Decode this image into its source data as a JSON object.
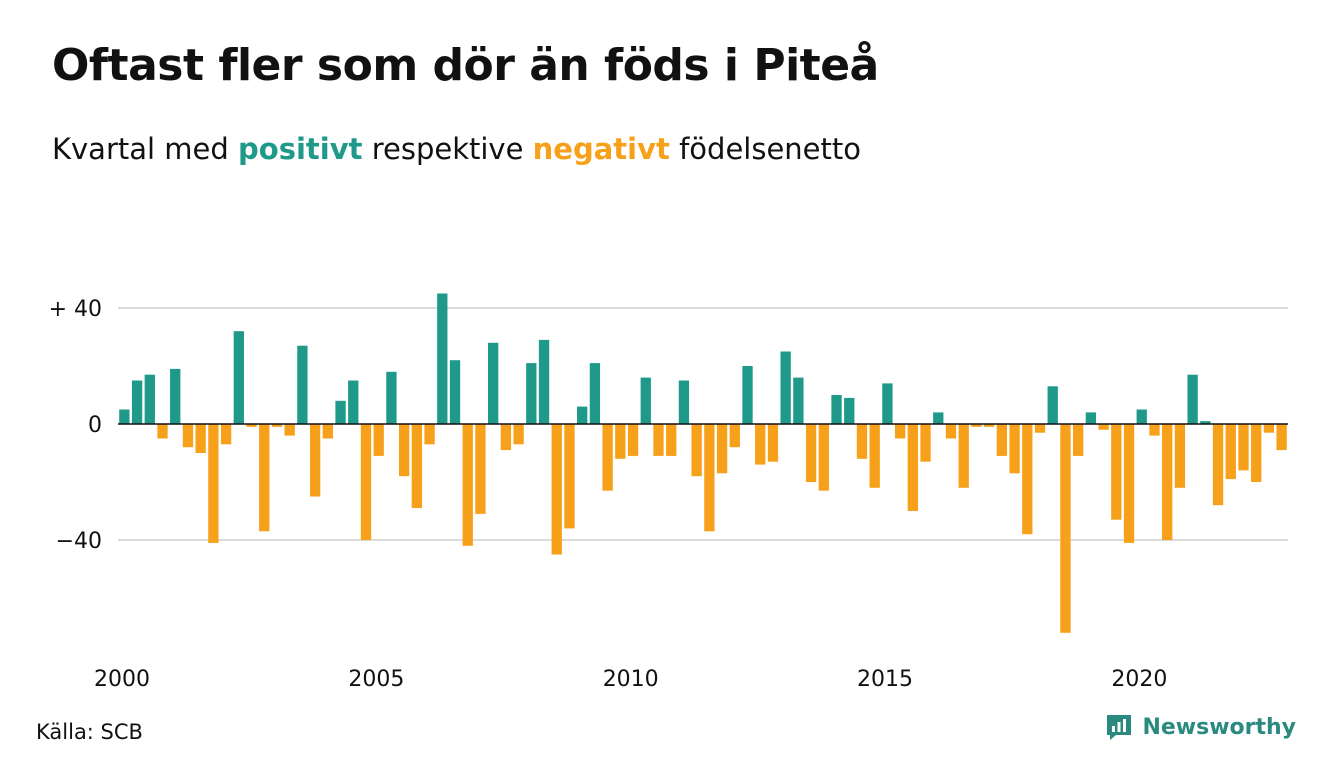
{
  "title": "Oftast fler som dör än föds i Piteå",
  "subtitle": {
    "prefix": "Kvartal med",
    "positive": "positivt",
    "middle": "respektive",
    "negative": "negativt",
    "suffix": "födelsenetto"
  },
  "colors": {
    "positive": "#1f9a8a",
    "negative": "#f7a11a",
    "grid": "#dcdcdc",
    "zero_line": "#111111",
    "brand": "#2a8a80"
  },
  "source": "Källa: SCB",
  "brand": {
    "name": "Newsworthy",
    "icon": "newsworthy-logo-icon"
  },
  "chart_data": {
    "type": "bar",
    "title": "Oftast fler som dör än föds i Piteå",
    "xlabel": "",
    "ylabel": "",
    "ylim": [
      -76,
      46
    ],
    "yticks": [
      {
        "value": 40,
        "label": "+ 40"
      },
      {
        "value": 0,
        "label": "0"
      },
      {
        "value": -40,
        "label": "−40"
      }
    ],
    "xticks": [
      {
        "value": 2000,
        "label": "2000"
      },
      {
        "value": 2005,
        "label": "2005"
      },
      {
        "value": 2010,
        "label": "2010"
      },
      {
        "value": 2015,
        "label": "2015"
      },
      {
        "value": 2020,
        "label": "2020"
      }
    ],
    "x_start": 2000,
    "periods_per_year": 4,
    "grid": true,
    "legend": "none",
    "values": [
      5,
      15,
      17,
      -5,
      19,
      -8,
      -10,
      -41,
      -7,
      32,
      -1,
      -37,
      -1,
      -4,
      27,
      -25,
      -5,
      8,
      15,
      -40,
      -11,
      18,
      -18,
      -29,
      -7,
      45,
      22,
      -42,
      -31,
      28,
      -9,
      -7,
      21,
      29,
      -45,
      -36,
      6,
      21,
      -23,
      -12,
      -11,
      16,
      -11,
      -11,
      15,
      -18,
      -37,
      -17,
      -8,
      20,
      -14,
      -13,
      25,
      16,
      -20,
      -23,
      10,
      9,
      -12,
      -22,
      14,
      -5,
      -30,
      -13,
      4,
      -5,
      -22,
      -1,
      -1,
      -11,
      -17,
      -38,
      -3,
      13,
      -72,
      -11,
      4,
      -2,
      -33,
      -41,
      5,
      -4,
      -40,
      -22,
      17,
      1,
      -28,
      -19,
      -16,
      -20,
      -3,
      -9
    ]
  }
}
